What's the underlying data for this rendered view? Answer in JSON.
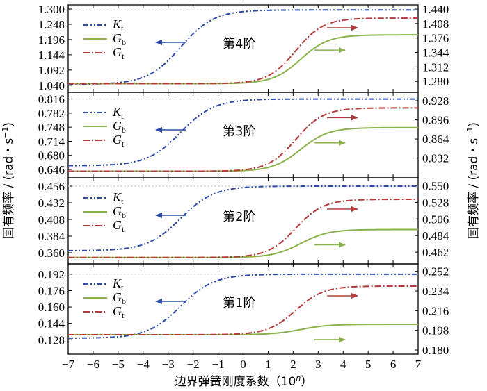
{
  "chart_data": {
    "type": "line",
    "x_axis": {
      "label": "边界弹簧刚度系数（10",
      "label_sup": "n",
      "label_end": "）",
      "range": [
        -7,
        7
      ],
      "ticks": [
        -7,
        -6,
        -5,
        -4,
        -3,
        -2,
        -1,
        0,
        1,
        2,
        3,
        4,
        5,
        6,
        7
      ],
      "tick_labels": [
        "−7",
        "−6",
        "−5",
        "−4",
        "−3",
        "−2",
        "−1",
        "0",
        "1",
        "2",
        "3",
        "4",
        "5",
        "6",
        "7"
      ]
    },
    "left_axis_label": "固有频率 / (rad・s",
    "right_axis_label": "固有频率 / (rad・s",
    "axis_label_sup": "−1",
    "axis_label_end": ")",
    "legend": [
      {
        "key": "Kt",
        "main": "K",
        "sub": "t",
        "color": "#2b4aa8",
        "dash": "dashdotdot"
      },
      {
        "key": "Gb",
        "main": "G",
        "sub": "b",
        "color": "#8ab24a",
        "dash": "solid"
      },
      {
        "key": "Gt",
        "main": "G",
        "sub": "t",
        "color": "#b53a3a",
        "dash": "dashdot"
      }
    ],
    "panels": [
      {
        "title": "第4阶",
        "left_axis": {
          "range": [
            1.03,
            1.3
          ],
          "ticks": [
            1.04,
            1.092,
            1.144,
            1.196,
            1.248,
            1.3
          ],
          "tick_labels": [
            "1.040",
            "1.092",
            "1.144",
            "1.196",
            "1.248",
            "1.300"
          ]
        },
        "right_axis": {
          "range": [
            1.265,
            1.44
          ],
          "ticks": [
            1.28,
            1.312,
            1.344,
            1.376,
            1.408,
            1.44
          ],
          "tick_labels": [
            "1.280",
            "1.312",
            "1.344",
            "1.376",
            "1.408",
            "1.440"
          ]
        },
        "series": [
          {
            "key": "Kt",
            "axis": "left",
            "low": 1.043,
            "high": 1.297,
            "center": -2.5,
            "k": 1.5
          },
          {
            "key": "Gb",
            "axis": "right",
            "low": 1.275,
            "high": 1.383,
            "center": 2.3,
            "k": 1.8
          },
          {
            "key": "Gt",
            "axis": "right",
            "low": 1.275,
            "high": 1.42,
            "center": 2.1,
            "k": 1.8
          }
        ]
      },
      {
        "title": "第3阶",
        "left_axis": {
          "range": [
            0.636,
            0.822
          ],
          "ticks": [
            0.646,
            0.68,
            0.714,
            0.748,
            0.782,
            0.816
          ],
          "tick_labels": [
            "0.646",
            "0.680",
            "0.714",
            "0.748",
            "0.782",
            "0.816"
          ]
        },
        "right_axis": {
          "range": [
            0.806,
            0.935
          ],
          "ticks": [
            0.832,
            0.864,
            0.896,
            0.928
          ],
          "tick_labels": [
            "0.832",
            "0.864",
            "0.896",
            "0.928"
          ]
        },
        "series": [
          {
            "key": "Kt",
            "axis": "left",
            "low": 0.655,
            "high": 0.816,
            "center": -2.5,
            "k": 1.5
          },
          {
            "key": "Gb",
            "axis": "right",
            "low": 0.81,
            "high": 0.883,
            "center": 2.3,
            "k": 1.8
          },
          {
            "key": "Gt",
            "axis": "right",
            "low": 0.81,
            "high": 0.916,
            "center": 2.1,
            "k": 1.8
          }
        ]
      },
      {
        "title": "第2阶",
        "left_axis": {
          "range": [
            0.35,
            0.462
          ],
          "ticks": [
            0.36,
            0.384,
            0.408,
            0.432,
            0.456
          ],
          "tick_labels": [
            "0.360",
            "0.384",
            "0.408",
            "0.432",
            "0.456"
          ]
        },
        "right_axis": {
          "range": [
            0.452,
            0.555
          ],
          "ticks": [
            0.462,
            0.484,
            0.506,
            0.528,
            0.55
          ],
          "tick_labels": [
            "0.462",
            "0.484",
            "0.506",
            "0.528",
            "0.550"
          ]
        },
        "series": [
          {
            "key": "Kt",
            "axis": "left",
            "low": 0.363,
            "high": 0.456,
            "center": -2.5,
            "k": 1.5
          },
          {
            "key": "Gb",
            "axis": "right",
            "low": 0.455,
            "high": 0.492,
            "center": 2.3,
            "k": 1.8
          },
          {
            "key": "Gt",
            "axis": "right",
            "low": 0.455,
            "high": 0.532,
            "center": 2.1,
            "k": 1.8
          }
        ]
      },
      {
        "title": "第1阶",
        "left_axis": {
          "range": [
            0.118,
            0.198
          ],
          "ticks": [
            0.128,
            0.144,
            0.16,
            0.176,
            0.192
          ],
          "tick_labels": [
            "0.128",
            "0.144",
            "0.160",
            "0.176",
            "0.192"
          ]
        },
        "right_axis": {
          "range": [
            0.18,
            0.255
          ],
          "ticks": [
            0.18,
            0.198,
            0.216,
            0.234,
            0.252
          ],
          "tick_labels": [
            "0.180",
            "0.198",
            "0.216",
            "0.234",
            "0.252"
          ]
        },
        "series": [
          {
            "key": "Kt",
            "axis": "left",
            "low": 0.1295,
            "high": 0.192,
            "center": -2.5,
            "k": 1.5
          },
          {
            "key": "Gb",
            "axis": "right",
            "low": 0.194,
            "high": 0.2035,
            "center": 2.3,
            "k": 1.8
          },
          {
            "key": "Gt",
            "axis": "right",
            "low": 0.194,
            "high": 0.2385,
            "center": 2.1,
            "k": 1.8
          }
        ]
      }
    ]
  }
}
